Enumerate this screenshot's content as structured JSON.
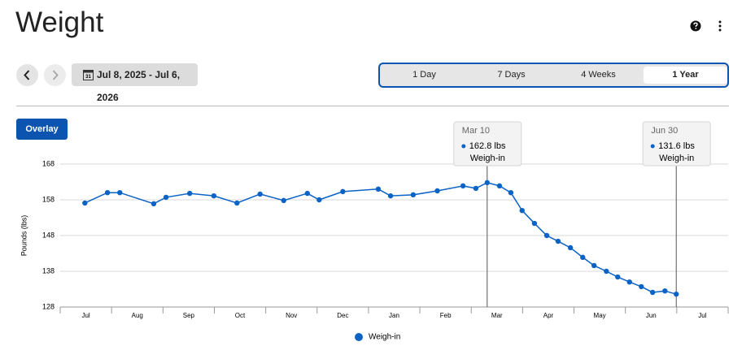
{
  "header": {
    "title": "Weight"
  },
  "toolbar": {
    "date_range": "Jul 8, 2025 - Jul 6, 2026",
    "calendar_day": "31",
    "ranges": [
      "1 Day",
      "7 Days",
      "4 Weeks",
      "1 Year"
    ],
    "selected_range": 3,
    "overlay": "Overlay"
  },
  "chart_data": {
    "type": "line",
    "y_label": "Pounds (lbs)",
    "xlim": [
      0,
      13
    ],
    "xticks": [
      {
        "value": 0.5,
        "label": "Jul"
      },
      {
        "value": 1.5,
        "label": "Aug"
      },
      {
        "value": 2.5,
        "label": "Sep"
      },
      {
        "value": 3.5,
        "label": "Oct"
      },
      {
        "value": 4.5,
        "label": "Nov"
      },
      {
        "value": 5.5,
        "label": "Dec"
      },
      {
        "value": 6.5,
        "label": "Jan"
      },
      {
        "value": 7.5,
        "label": "Feb"
      },
      {
        "value": 8.5,
        "label": "Mar"
      },
      {
        "value": 9.5,
        "label": "Apr"
      },
      {
        "value": 10.5,
        "label": "May"
      },
      {
        "value": 11.5,
        "label": "Jun"
      },
      {
        "value": 12.5,
        "label": "Jul"
      }
    ],
    "ylim": [
      128,
      168
    ],
    "yticks": [
      128,
      138,
      148,
      158,
      168
    ],
    "grid": true,
    "x": [
      0.48,
      0.92,
      1.16,
      1.82,
      2.06,
      2.52,
      2.99,
      3.44,
      3.89,
      4.35,
      4.81,
      5.04,
      5.5,
      6.19,
      6.43,
      6.87,
      7.34,
      7.84,
      8.09,
      8.31,
      8.55,
      8.77,
      8.99,
      9.23,
      9.47,
      9.69,
      9.93,
      10.17,
      10.39,
      10.63,
      10.85,
      11.08,
      11.31,
      11.53,
      11.77,
      11.99
    ],
    "point_labels": [
      null,
      null,
      null,
      null,
      null,
      null,
      null,
      null,
      null,
      null,
      null,
      null,
      null,
      null,
      null,
      null,
      null,
      null,
      null,
      "Mar 10",
      null,
      null,
      null,
      null,
      null,
      null,
      null,
      null,
      null,
      null,
      null,
      null,
      null,
      null,
      null,
      "Jun 30"
    ],
    "series": [
      {
        "name": "Weigh-in",
        "color": "#0b63c5",
        "values": [
          157.1,
          160.0,
          160.0,
          156.9,
          158.7,
          159.8,
          159.1,
          157.1,
          159.6,
          157.8,
          159.8,
          158.0,
          160.3,
          161.0,
          159.1,
          159.4,
          160.5,
          161.9,
          161.2,
          162.8,
          161.9,
          160.0,
          155.0,
          151.4,
          148.0,
          146.4,
          144.6,
          141.9,
          139.6,
          138.0,
          136.4,
          135.0,
          133.7,
          132.1,
          132.5,
          131.6
        ],
        "value_labels": [
          null,
          null,
          null,
          null,
          null,
          null,
          null,
          null,
          null,
          null,
          null,
          null,
          null,
          null,
          null,
          null,
          null,
          null,
          null,
          "162.8 lbs",
          null,
          null,
          null,
          null,
          null,
          null,
          null,
          null,
          null,
          null,
          null,
          null,
          null,
          null,
          null,
          "131.6 lbs"
        ]
      }
    ]
  }
}
